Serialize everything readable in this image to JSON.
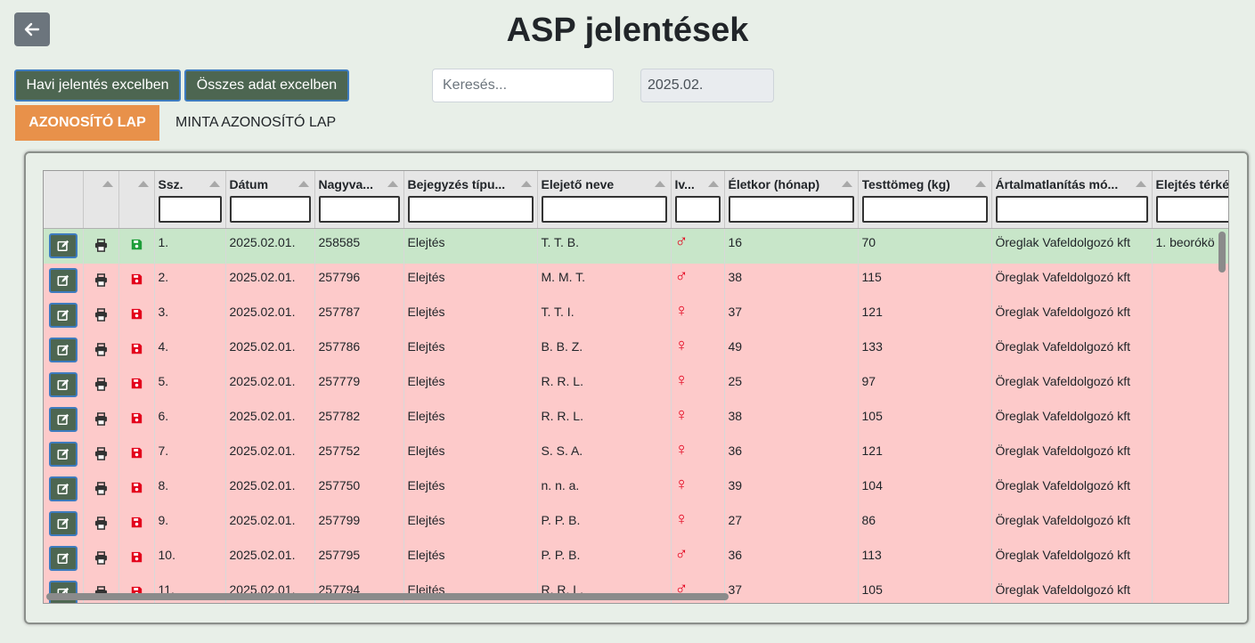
{
  "header": {
    "title": "ASP jelentések"
  },
  "toolbar": {
    "buttons": [
      "Havi jelentés excelben",
      "Összes adat excelben"
    ],
    "search_placeholder": "Keresés...",
    "period": "2025.02."
  },
  "tabs": [
    "AZONOSÍTÓ LAP",
    "MINTA AZONOSÍTÓ LAP"
  ],
  "table": {
    "columns": [
      "Ssz.",
      "Dátum",
      "Nagyva...",
      "Bejegyzés típu...",
      "Elejető neve",
      "Iv...",
      "Életkor (hónap)",
      "Testtömeg (kg)",
      "Ártalmatlanítás mó...",
      "Elejtés térké"
    ],
    "rows": [
      {
        "color": "#c8e6c9",
        "icon_color": "#1e9e3a",
        "cells": [
          "1.",
          "2025.02.01.",
          "258585",
          "Elejtés",
          "T. T. B.",
          "♂",
          16,
          70,
          "Öreglak Vafeldolgozó kft",
          "1. beorókö"
        ]
      },
      {
        "color": "#fdcaca",
        "icon_color": "#e3001b",
        "cells": [
          "2.",
          "2025.02.01.",
          "257796",
          "Elejtés",
          "M. M. T.",
          "♂",
          38,
          115,
          "Öreglak Vafeldolgozó kft",
          null
        ]
      },
      {
        "color": "#fdcaca",
        "icon_color": "#e3001b",
        "cells": [
          "3.",
          "2025.02.01.",
          "257787",
          "Elejtés",
          "T. T. I.",
          "♀",
          37,
          121,
          "Öreglak Vafeldolgozó kft",
          null
        ]
      },
      {
        "color": "#fdcaca",
        "icon_color": "#e3001b",
        "cells": [
          "4.",
          "2025.02.01.",
          "257786",
          "Elejtés",
          "B. B. Z.",
          "♀",
          49,
          133,
          "Öreglak Vafeldolgozó kft",
          null
        ]
      },
      {
        "color": "#fdcaca",
        "icon_color": "#e3001b",
        "cells": [
          "5.",
          "2025.02.01.",
          "257779",
          "Elejtés",
          "R. R. L.",
          "♀",
          25,
          97,
          "Öreglak Vafeldolgozó kft",
          null
        ]
      },
      {
        "color": "#fdcaca",
        "icon_color": "#e3001b",
        "cells": [
          "6.",
          "2025.02.01.",
          "257782",
          "Elejtés",
          "R. R. L.",
          "♀",
          38,
          105,
          "Öreglak Vafeldolgozó kft",
          null
        ]
      },
      {
        "color": "#fdcaca",
        "icon_color": "#e3001b",
        "cells": [
          "7.",
          "2025.02.01.",
          "257752",
          "Elejtés",
          "S. S. A.",
          "♀",
          36,
          121,
          "Öreglak Vafeldolgozó kft",
          null
        ]
      },
      {
        "color": "#fdcaca",
        "icon_color": "#e3001b",
        "cells": [
          "8.",
          "2025.02.01.",
          "257750",
          "Elejtés",
          "n. n. a.",
          "♀",
          39,
          104,
          "Öreglak Vafeldolgozó kft",
          null
        ]
      },
      {
        "color": "#fdcaca",
        "icon_color": "#e3001b",
        "cells": [
          "9.",
          "2025.02.01.",
          "257799",
          "Elejtés",
          "P. P. B.",
          "♀",
          27,
          86,
          "Öreglak Vafeldolgozó kft",
          null
        ]
      },
      {
        "color": "#fdcaca",
        "icon_color": "#e3001b",
        "cells": [
          "10.",
          "2025.02.01.",
          "257795",
          "Elejtés",
          "P. P. B.",
          "♂",
          36,
          113,
          "Öreglak Vafeldolgozó kft",
          null
        ]
      },
      {
        "color": "#fdcaca",
        "icon_color": "#e3001b",
        "cells": [
          "11.",
          "2025.02.01.",
          "257794",
          "Elejtés",
          "R. R. L.",
          "♂",
          37,
          105,
          "Öreglak Vafeldolgozó kft",
          null
        ]
      }
    ]
  }
}
